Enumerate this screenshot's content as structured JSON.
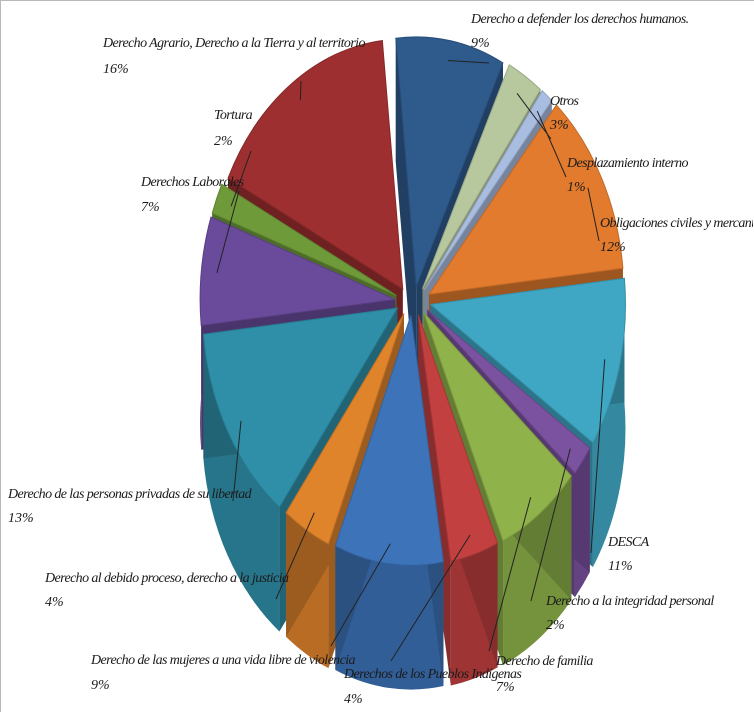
{
  "chart_data": {
    "type": "pie",
    "title": "",
    "slices": [
      {
        "label": "Derecho a defender los derechos humanos.",
        "percent": 9,
        "value_text": "9%",
        "color": "#2e5a8c"
      },
      {
        "label": "Otros",
        "percent": 3,
        "value_text": "3%",
        "color": "#b7c79e"
      },
      {
        "label": "Desplazamiento interno",
        "percent": 1,
        "value_text": "1%",
        "color": "#a8bde0"
      },
      {
        "label": "Obligaciones civiles y mercantiles",
        "percent": 12,
        "value_text": "12%",
        "color": "#e27b2e"
      },
      {
        "label": "DESCA",
        "percent": 11,
        "value_text": "11%",
        "color": "#3fa7c4"
      },
      {
        "label": "Derecho a la integridad personal",
        "percent": 2,
        "value_text": "2%",
        "color": "#7a52a0"
      },
      {
        "label": "Derecho de familia",
        "percent": 7,
        "value_text": "7%",
        "color": "#8fb24a"
      },
      {
        "label": "Derechos de los Pueblos Indígenas",
        "percent": 4,
        "value_text": "4%",
        "color": "#c24040"
      },
      {
        "label": "Derecho de las mujeres a una vida libre de violencia",
        "percent": 9,
        "value_text": "9%",
        "color": "#3d73b8"
      },
      {
        "label": "Derecho al debido proceso, derecho a la justicia",
        "percent": 4,
        "value_text": "4%",
        "color": "#e0842c"
      },
      {
        "label": "Derecho de las personas privadas de su libertad",
        "percent": 13,
        "value_text": "13%",
        "color": "#2f8fa8"
      },
      {
        "label": "Derechos Laborales",
        "percent": 7,
        "value_text": "7%",
        "color": "#6a4a9a"
      },
      {
        "label": "Tortura",
        "percent": 2,
        "value_text": "2%",
        "color": "#6f9a3a"
      },
      {
        "label": "Derecho Agrario, Derecho a la Tierra y al territorio",
        "percent": 16,
        "value_text": "16%",
        "color": "#9e2f30"
      }
    ],
    "legend": "none",
    "style": "3d-exploded"
  }
}
